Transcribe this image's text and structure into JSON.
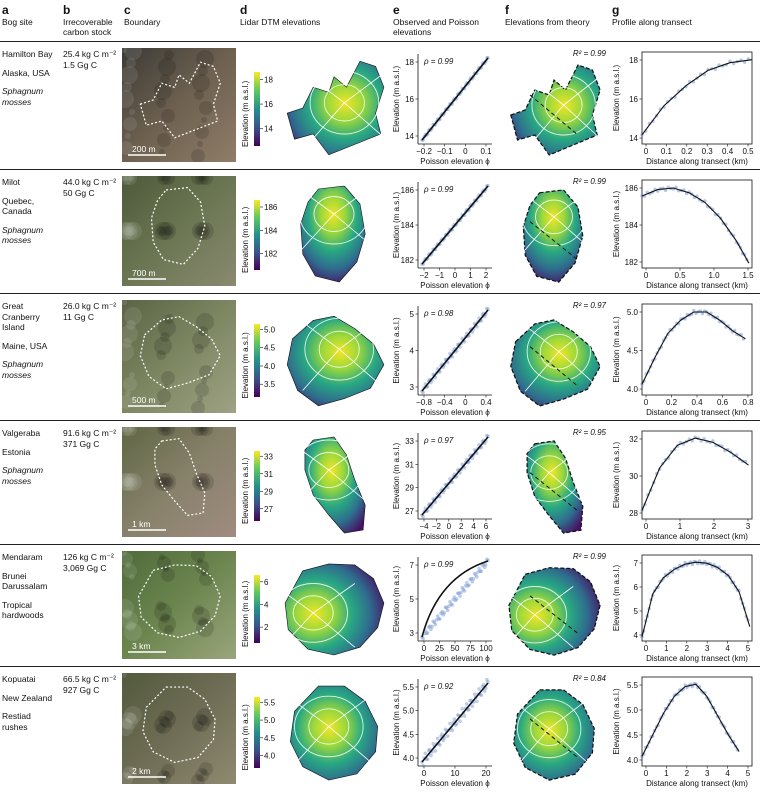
{
  "headers": [
    {
      "letter": "a",
      "text": "Bog site"
    },
    {
      "letter": "b",
      "text": "Irrecoverable carbon stock"
    },
    {
      "letter": "c",
      "text": "Boundary"
    },
    {
      "letter": "d",
      "text": "Lidar DTM elevations"
    },
    {
      "letter": "e",
      "text": "Observed and Poisson elevations"
    },
    {
      "letter": "f",
      "text": "Elevations from theory"
    },
    {
      "letter": "g",
      "text": "Profile along transect"
    }
  ],
  "rows": [
    {
      "site": [
        "Hamilton Bay"
      ],
      "region": [
        "Alaska, USA"
      ],
      "veg": [
        "Sphagnum",
        "mosses"
      ],
      "veg_italic": true,
      "stock_density": "25.4 kg C m⁻²",
      "stock_total": "1.5 Gg C",
      "scale_bar": "200 m",
      "photo_colors": [
        "#3b3a36",
        "#6e6150",
        "#8f7d68"
      ],
      "cbar_ticks": [
        "18",
        "16",
        "14"
      ],
      "cbar_label": "Elevation (m a.s.l.)",
      "e_rho": "ρ = 0.99",
      "e_xticks": [
        "−0.2",
        "−0.1",
        "0",
        "0.1"
      ],
      "e_yticks": [
        "18",
        "16",
        "14"
      ],
      "e_xlabel": "Poisson elevation ϕ",
      "e_ylabel": "Elevation (m a.s.l.)",
      "f_r2": "R² = 0.99",
      "g_xticks": [
        "0",
        "0.1",
        "0.2",
        "0.3",
        "0.4",
        "0.5"
      ],
      "g_yticks": [
        "18",
        "16",
        "14"
      ],
      "g_xlabel": "Distance along transect (km)",
      "g_ylabel": "Elevation (m a.s.l.)",
      "profile": {
        "curve": "rise",
        "x": [
          0,
          0.1,
          0.2,
          0.3,
          0.4,
          0.5
        ],
        "y": [
          13.6,
          15.5,
          16.8,
          17.8,
          18.3,
          18.5
        ],
        "xlim": [
          0,
          0.5
        ],
        "ylim": [
          13,
          19
        ]
      },
      "spread": "low"
    },
    {
      "site": [
        "Milot"
      ],
      "region": [
        "Quebec,",
        "Canada"
      ],
      "veg": [
        "Sphagnum",
        "mosses"
      ],
      "veg_italic": true,
      "stock_density": "44.0 kg C m⁻²",
      "stock_total": "50 Gg C",
      "scale_bar": "700 m",
      "photo_colors": [
        "#4d5a3a",
        "#6b7653",
        "#8a8a70"
      ],
      "cbar_ticks": [
        "186",
        "184",
        "182"
      ],
      "cbar_label": "Elevation (m a.s.l.)",
      "e_rho": "ρ = 0.99",
      "e_xticks": [
        "−2",
        "−1",
        "0",
        "1",
        "2"
      ],
      "e_yticks": [
        "186",
        "184",
        "182"
      ],
      "e_xlabel": "Poisson elevation ϕ",
      "e_ylabel": "Elevation (m a.s.l.)",
      "f_r2": "R² = 0.99",
      "g_xticks": [
        "0",
        "0.5",
        "1.0",
        "1.5"
      ],
      "g_yticks": [
        "186",
        "184",
        "182"
      ],
      "g_xlabel": "Distance along transect (km)",
      "g_ylabel": "Elevation (m a.s.l.)",
      "profile": {
        "curve": "hump",
        "x": [
          0,
          0.25,
          0.5,
          0.75,
          1.0,
          1.25,
          1.5,
          1.7
        ],
        "y": [
          186.0,
          186.4,
          186.5,
          186.2,
          185.6,
          184.6,
          183.2,
          181.8
        ],
        "xlim": [
          0,
          1.75
        ],
        "ylim": [
          181.5,
          187
        ]
      },
      "spread": "low"
    },
    {
      "site": [
        "Great",
        "Cranberry",
        "Island"
      ],
      "region": [
        "Maine, USA"
      ],
      "veg": [
        "Sphagnum",
        "mosses"
      ],
      "veg_italic": true,
      "stock_density": "26.0 kg C m⁻²",
      "stock_total": "11 Gg C",
      "scale_bar": "500 m",
      "photo_colors": [
        "#5a6344",
        "#7d8762",
        "#9fa284"
      ],
      "cbar_ticks": [
        "5.0",
        "4.5",
        "4.0",
        "3.5"
      ],
      "cbar_label": "Elevation (m a.s.l.)",
      "e_rho": "ρ = 0.98",
      "e_xticks": [
        "−0.8",
        "−0.4",
        "0",
        "0.4"
      ],
      "e_yticks": [
        "5",
        "4",
        "3"
      ],
      "e_xlabel": "Poisson elevation ϕ",
      "e_ylabel": "Elevation (m a.s.l.)",
      "f_r2": "R² = 0.97",
      "g_xticks": [
        "0",
        "0.2",
        "0.4",
        "0.6",
        "0.8"
      ],
      "g_yticks": [
        "5.0",
        "4.5",
        "4.0"
      ],
      "g_xlabel": "Distance along transect (km)",
      "g_ylabel": "Elevation (m a.s.l.)",
      "profile": {
        "curve": "hump",
        "x": [
          0,
          0.1,
          0.2,
          0.3,
          0.4,
          0.5,
          0.6,
          0.7,
          0.8
        ],
        "y": [
          3.8,
          4.3,
          4.75,
          5.0,
          5.15,
          5.15,
          5.0,
          4.8,
          4.65
        ],
        "xlim": [
          0,
          0.85
        ],
        "ylim": [
          3.6,
          5.3
        ]
      },
      "spread": "mid"
    },
    {
      "site": [
        "Valgeraba"
      ],
      "region": [
        "Estonia"
      ],
      "veg": [
        "Sphagnum",
        "mosses"
      ],
      "veg_italic": true,
      "stock_density": "91.6 kg C m⁻²",
      "stock_total": "371 Gg C",
      "scale_bar": "1 km",
      "photo_colors": [
        "#5f6644",
        "#87816a",
        "#a08c80"
      ],
      "cbar_ticks": [
        "33",
        "31",
        "29",
        "27"
      ],
      "cbar_label": "Elevation (m a.s.l.)",
      "e_rho": "ρ = 0.97",
      "e_xticks": [
        "−4",
        "−2",
        "0",
        "2",
        "4",
        "6"
      ],
      "e_yticks": [
        "33",
        "31",
        "29",
        "27"
      ],
      "e_xlabel": "Poisson elevation ϕ",
      "e_ylabel": "Elevation (m a.s.l.)",
      "f_r2": "R² = 0.95",
      "g_xticks": [
        "0",
        "1",
        "2",
        "3"
      ],
      "g_yticks": [
        "32",
        "30",
        "28"
      ],
      "g_xlabel": "Distance along transect (km)",
      "g_ylabel": "Elevation (m a.s.l.)",
      "profile": {
        "curve": "hump",
        "x": [
          0,
          0.5,
          1.0,
          1.5,
          2.0,
          2.5,
          3.0
        ],
        "y": [
          27.6,
          30.6,
          32.2,
          32.7,
          32.4,
          31.7,
          30.8
        ],
        "xlim": [
          0,
          3.1
        ],
        "ylim": [
          27,
          33.2
        ]
      },
      "spread": "mid"
    },
    {
      "site": [
        "Mendaram"
      ],
      "region": [
        "Brunei",
        "Darussalam"
      ],
      "veg": [
        "Tropical",
        "hardwoods"
      ],
      "veg_italic": false,
      "stock_density": "126 kg C m⁻²",
      "stock_total": "3,069 Gg C",
      "scale_bar": "3 km",
      "photo_colors": [
        "#4f6b3b",
        "#6d8650",
        "#9aa57c"
      ],
      "cbar_ticks": [
        "6",
        "4",
        "2"
      ],
      "cbar_label": "Elevation (m a.s.l.)",
      "e_rho": "ρ = 0.99",
      "e_xticks": [
        "0",
        "25",
        "50",
        "75",
        "100"
      ],
      "e_yticks": [
        "7",
        "5",
        "3"
      ],
      "e_xlabel": "Poisson elevation ϕ",
      "e_ylabel": "Elevation (m a.s.l.)",
      "f_r2": "R² = 0.99",
      "g_xticks": [
        "0",
        "1",
        "2",
        "3",
        "4",
        "5"
      ],
      "g_yticks": [
        "7",
        "6",
        "5",
        "4"
      ],
      "g_xlabel": "Distance along transect (km)",
      "g_ylabel": "Elevation (m a.s.l.)",
      "profile": {
        "curve": "hump",
        "x": [
          0,
          0.5,
          1.0,
          1.5,
          2.0,
          2.5,
          3.0,
          3.5,
          4.0,
          4.5,
          5.0
        ],
        "y": [
          3.3,
          5.4,
          6.2,
          6.6,
          6.85,
          6.95,
          6.9,
          6.7,
          6.3,
          5.5,
          3.8
        ],
        "xlim": [
          0,
          5.1
        ],
        "ylim": [
          3.1,
          7.3
        ]
      },
      "spread": "mid"
    },
    {
      "site": [
        "Kopuatai"
      ],
      "region": [
        "New Zealand"
      ],
      "veg": [
        "Restiad",
        "rushes"
      ],
      "veg_italic": false,
      "stock_density": "66.5 kg C m⁻²",
      "stock_total": "927 Gg C",
      "scale_bar": "2 km",
      "photo_colors": [
        "#525a3c",
        "#6f6d55",
        "#8e8a70"
      ],
      "cbar_ticks": [
        "5.5",
        "5.0",
        "4.5",
        "4.0"
      ],
      "cbar_label": "Elevation (m a.s.l.)",
      "e_rho": "ρ = 0.92",
      "e_xticks": [
        "0",
        "10",
        "20"
      ],
      "e_yticks": [
        "5.5",
        "5.0",
        "4.5",
        "4.0"
      ],
      "e_xlabel": "Poisson elevation ϕ",
      "e_ylabel": "Elevation (m a.s.l.)",
      "f_r2": "R² = 0.84",
      "g_xticks": [
        "0",
        "1",
        "2",
        "3",
        "4",
        "5"
      ],
      "g_yticks": [
        "5.5",
        "5.0",
        "4.5",
        "4.0"
      ],
      "g_xlabel": "Distance along transect (km)",
      "g_ylabel": "Elevation (m a.s.l.)",
      "profile": {
        "curve": "hump",
        "x": [
          0,
          0.5,
          1.0,
          1.5,
          2.0,
          2.5,
          3.0,
          3.5,
          4.0,
          4.5
        ],
        "y": [
          4.05,
          4.5,
          4.95,
          5.3,
          5.5,
          5.55,
          5.3,
          4.9,
          4.5,
          4.15
        ],
        "xlim": [
          0,
          5.1
        ],
        "ylim": [
          3.85,
          5.7
        ]
      },
      "spread": "high"
    }
  ]
}
